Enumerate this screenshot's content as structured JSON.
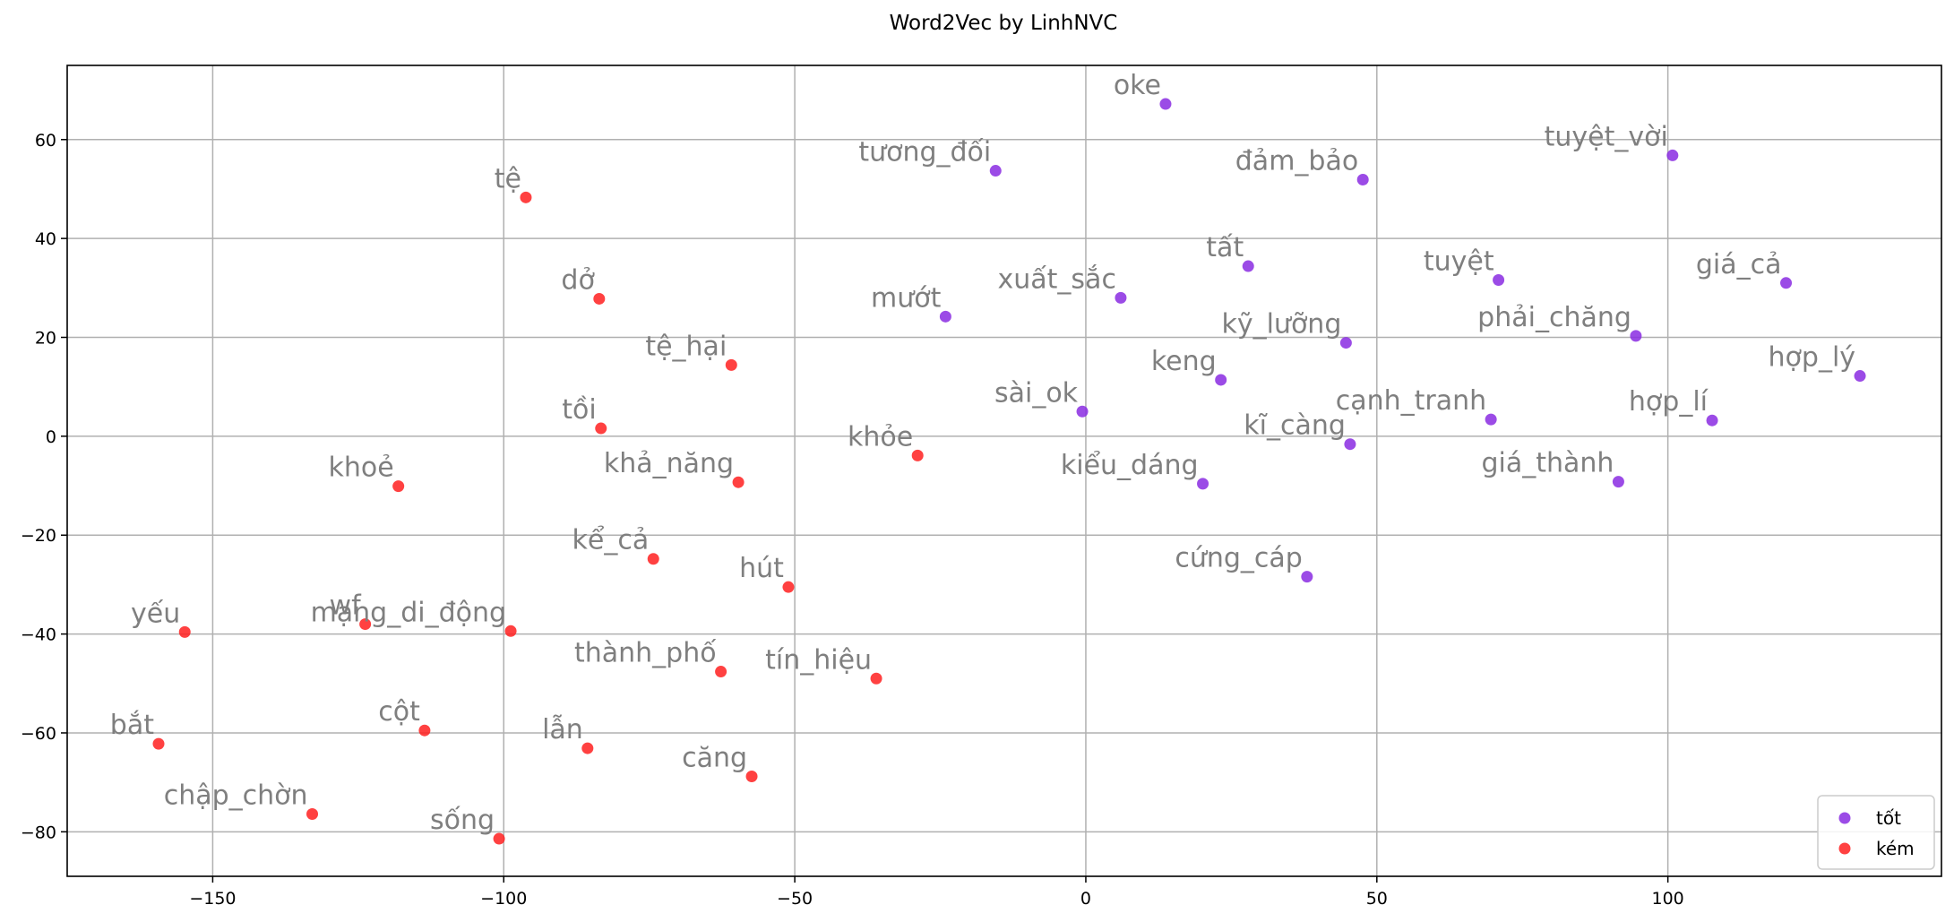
{
  "chart_data": {
    "type": "scatter",
    "title": "Word2Vec by LinhNVC",
    "xlabel": "",
    "ylabel": "",
    "xlim": [
      -175,
      147
    ],
    "ylim": [
      -89,
      75
    ],
    "xticks": [
      -150,
      -100,
      -50,
      0,
      50,
      100
    ],
    "yticks": [
      -80,
      -60,
      -40,
      -20,
      0,
      20,
      40,
      60
    ],
    "xtick_labels": [
      "−150",
      "−100",
      "−50",
      "0",
      "50",
      "100"
    ],
    "ytick_labels": [
      "−80",
      "−60",
      "−40",
      "−20",
      "0",
      "20",
      "40",
      "60"
    ],
    "grid": true,
    "legend_position": "bottom-right",
    "series": [
      {
        "name": "tốt",
        "color": "#8a2be2",
        "points": [
          {
            "label": "oke",
            "x": 13.7,
            "y": 67.2
          },
          {
            "label": "tương_đối",
            "x": -15.5,
            "y": 53.7
          },
          {
            "label": "đảm_bảo",
            "x": 47.6,
            "y": 51.9
          },
          {
            "label": "tuyệt_vời",
            "x": 100.8,
            "y": 56.8
          },
          {
            "label": "tất",
            "x": 27.9,
            "y": 34.4
          },
          {
            "label": "tuyệt",
            "x": 70.9,
            "y": 31.6
          },
          {
            "label": "giá_cả",
            "x": 120.3,
            "y": 31.0
          },
          {
            "label": "xuất_sắc",
            "x": 6.0,
            "y": 28.0
          },
          {
            "label": "mướt",
            "x": -24.1,
            "y": 24.2
          },
          {
            "label": "kỹ_lưỡng",
            "x": 44.7,
            "y": 18.9
          },
          {
            "label": "phải_chăng",
            "x": 94.5,
            "y": 20.3
          },
          {
            "label": "keng",
            "x": 23.2,
            "y": 11.4
          },
          {
            "label": "hợp_lý",
            "x": 133.0,
            "y": 12.2
          },
          {
            "label": "sài_ok",
            "x": -0.6,
            "y": 5.0
          },
          {
            "label": "cạnh_tranh",
            "x": 69.6,
            "y": 3.4
          },
          {
            "label": "hợp_lí",
            "x": 107.6,
            "y": 3.2
          },
          {
            "label": "kĩ_càng",
            "x": 45.4,
            "y": -1.6
          },
          {
            "label": "kiểu_dáng",
            "x": 20.1,
            "y": -9.6
          },
          {
            "label": "giá_thành",
            "x": 91.5,
            "y": -9.2
          },
          {
            "label": "cứng_cáp",
            "x": 38.0,
            "y": -28.4
          }
        ]
      },
      {
        "name": "kém",
        "color": "#ff2020",
        "points": [
          {
            "label": "tệ",
            "x": -96.2,
            "y": 48.3
          },
          {
            "label": "dở",
            "x": -83.6,
            "y": 27.8
          },
          {
            "label": "tệ_hại",
            "x": -60.9,
            "y": 14.4
          },
          {
            "label": "tồi",
            "x": -83.3,
            "y": 1.6
          },
          {
            "label": "khoẻ",
            "x": -118.1,
            "y": -10.1
          },
          {
            "label": "khả_năng",
            "x": -59.7,
            "y": -9.3
          },
          {
            "label": "khỏe",
            "x": -28.9,
            "y": -3.9
          },
          {
            "label": "kể_cả",
            "x": -74.3,
            "y": -24.8
          },
          {
            "label": "hút",
            "x": -51.1,
            "y": -30.5
          },
          {
            "label": "yếu",
            "x": -154.8,
            "y": -39.6
          },
          {
            "label": "wf",
            "x": -123.8,
            "y": -38.0
          },
          {
            "label": "mạng_di_động",
            "x": -98.8,
            "y": -39.4
          },
          {
            "label": "thành_phố",
            "x": -62.7,
            "y": -47.6
          },
          {
            "label": "tín_hiệu",
            "x": -36.0,
            "y": -49.0
          },
          {
            "label": "bắt",
            "x": -159.3,
            "y": -62.2
          },
          {
            "label": "cột",
            "x": -113.6,
            "y": -59.5
          },
          {
            "label": "lẫn",
            "x": -85.6,
            "y": -63.1
          },
          {
            "label": "căng",
            "x": -57.4,
            "y": -68.8
          },
          {
            "label": "chập_chờn",
            "x": -132.9,
            "y": -76.4
          },
          {
            "label": "sống",
            "x": -100.8,
            "y": -81.4
          }
        ]
      }
    ]
  }
}
